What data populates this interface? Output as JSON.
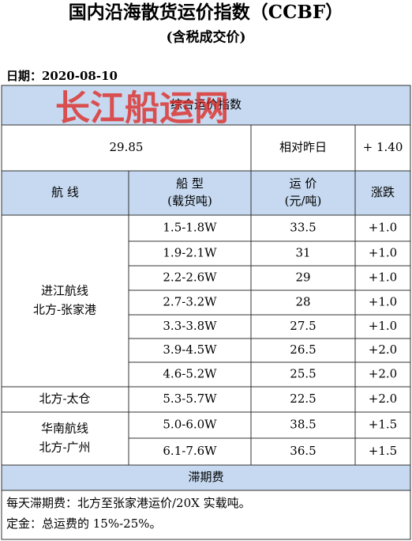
{
  "header": {
    "title": "国内沿海散货运价指数（CCBF）",
    "subtitle": "(含税成交价)",
    "date": "日期：2020-08-10"
  },
  "table": {
    "index_header": "综合运价指数",
    "watermark": "长江船运网",
    "index_value": "29.85",
    "compare_label": "相对昨日",
    "compare_value": "+ 1.40",
    "columns": [
      [
        "航  线"
      ],
      [
        "船  型",
        "(载货吨)"
      ],
      [
        "运  价",
        "(元/吨)"
      ],
      [
        "涨跌"
      ]
    ],
    "groups": [
      {
        "route": [
          "进江航线",
          "北方-张家港"
        ],
        "rows": [
          [
            "1.5-1.8W",
            "33.5",
            "+1.0"
          ],
          [
            "1.9-2.1W",
            "31",
            "+1.0"
          ],
          [
            "2.2-2.6W",
            "29",
            "+1.0"
          ],
          [
            "2.7-3.2W",
            "28",
            "+1.0"
          ],
          [
            "3.3-3.8W",
            "27.5",
            "+1.0"
          ],
          [
            "3.9-4.5W",
            "26.5",
            "+2.0"
          ],
          [
            "4.6-5.2W",
            "25.5",
            "+2.0"
          ]
        ]
      },
      {
        "route": [
          "北方-太仓"
        ],
        "rows": [
          [
            "5.3-5.7W",
            "22.5",
            "+2.0"
          ]
        ]
      },
      {
        "route": [
          "华南航线",
          "北方-广州"
        ],
        "rows": [
          [
            "5.0-6.0W",
            "38.5",
            "+1.5"
          ],
          [
            "6.1-7.6W",
            "36.5",
            "+1.5"
          ]
        ]
      }
    ],
    "fee_header": "滞期费",
    "notes": [
      "每天滞期费：北方至张家港运价/20X 实载吨。",
      "定金：总运费的 15%-25%。"
    ]
  }
}
